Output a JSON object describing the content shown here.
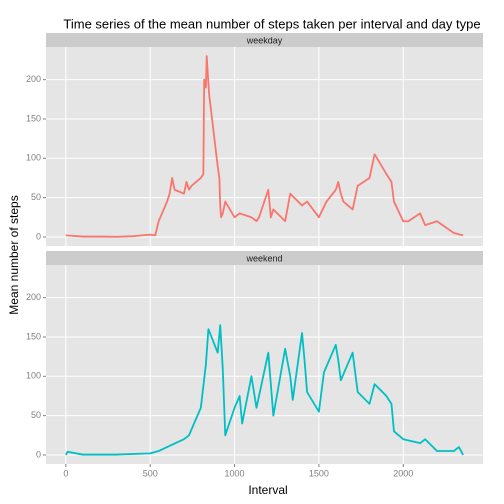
{
  "chart_data": {
    "type": "line",
    "title": "Time series of the mean number of steps taken per interval and day type",
    "xlabel": "Interval",
    "ylabel": "Mean number of steps",
    "xlim": [
      -117.75,
      2472.75
    ],
    "xticks": [
      0,
      500,
      1000,
      1500,
      2000
    ],
    "ylim": [
      -11.5,
      241.5
    ],
    "yticks": [
      0,
      50,
      100,
      150,
      200
    ],
    "grid": true,
    "series": [
      {
        "name": "weekday",
        "color": "#f8766d",
        "x": [
          0,
          100,
          200,
          300,
          400,
          500,
          530,
          550,
          600,
          615,
          630,
          645,
          700,
          715,
          730,
          745,
          800,
          815,
          820,
          830,
          835,
          845,
          850,
          900,
          910,
          915,
          920,
          930,
          945,
          1000,
          1030,
          1100,
          1130,
          1145,
          1200,
          1215,
          1230,
          1300,
          1330,
          1400,
          1430,
          1500,
          1545,
          1600,
          1615,
          1630,
          1645,
          1700,
          1730,
          1800,
          1830,
          1845,
          1900,
          1930,
          1945,
          2000,
          2030,
          2100,
          2130,
          2200,
          2300,
          2355
        ],
        "values": [
          2,
          0.5,
          0.5,
          0.3,
          1,
          3,
          2,
          20,
          45,
          55,
          75,
          60,
          55,
          70,
          60,
          65,
          75,
          80,
          200,
          190,
          230,
          195,
          180,
          90,
          75,
          40,
          25,
          30,
          45,
          25,
          30,
          25,
          20,
          25,
          60,
          25,
          35,
          20,
          55,
          40,
          45,
          25,
          45,
          60,
          70,
          55,
          45,
          35,
          65,
          75,
          105,
          100,
          80,
          70,
          45,
          20,
          20,
          30,
          15,
          20,
          5,
          2
        ]
      },
      {
        "name": "weekend",
        "color": "#00bfc4",
        "x": [
          0,
          10,
          100,
          300,
          500,
          550,
          600,
          700,
          730,
          800,
          830,
          845,
          900,
          915,
          930,
          945,
          1000,
          1030,
          1045,
          1100,
          1130,
          1200,
          1230,
          1300,
          1330,
          1345,
          1400,
          1415,
          1430,
          1500,
          1530,
          1600,
          1615,
          1630,
          1700,
          1730,
          1800,
          1830,
          1900,
          1930,
          1945,
          2000,
          2100,
          2130,
          2200,
          2300,
          2330,
          2355
        ],
        "values": [
          0,
          4,
          0.5,
          0.5,
          2,
          5,
          10,
          20,
          25,
          60,
          115,
          160,
          130,
          165,
          110,
          25,
          60,
          75,
          40,
          100,
          60,
          130,
          50,
          135,
          100,
          70,
          155,
          120,
          80,
          55,
          105,
          140,
          120,
          95,
          130,
          80,
          65,
          90,
          75,
          65,
          30,
          20,
          15,
          20,
          5,
          5,
          10,
          0
        ]
      }
    ]
  }
}
